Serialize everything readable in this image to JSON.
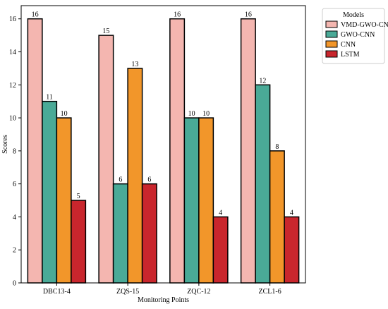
{
  "chart_data": {
    "type": "bar",
    "title": "",
    "xlabel": "Monitoring Points",
    "ylabel": "Scores",
    "categories": [
      "DBC13-4",
      "ZQS-15",
      "ZQC-12",
      "ZCL1-6"
    ],
    "series": [
      {
        "name": "VMD-GWO-CNN",
        "values": [
          16,
          15,
          16,
          16
        ],
        "color": "#f4b6b0"
      },
      {
        "name": "GWO-CNN",
        "values": [
          11,
          6,
          10,
          12
        ],
        "color": "#4aaa97"
      },
      {
        "name": "CNN",
        "values": [
          10,
          13,
          10,
          8
        ],
        "color": "#f2962a"
      },
      {
        "name": "LSTM",
        "values": [
          5,
          6,
          4,
          4
        ],
        "color": "#c9262d"
      }
    ],
    "ylim": [
      0,
      16.8
    ],
    "yticks": [
      0,
      2,
      4,
      6,
      8,
      10,
      12,
      14,
      16
    ],
    "legend_title": "Models",
    "legend_position": "outside-top-right",
    "grid": false
  }
}
